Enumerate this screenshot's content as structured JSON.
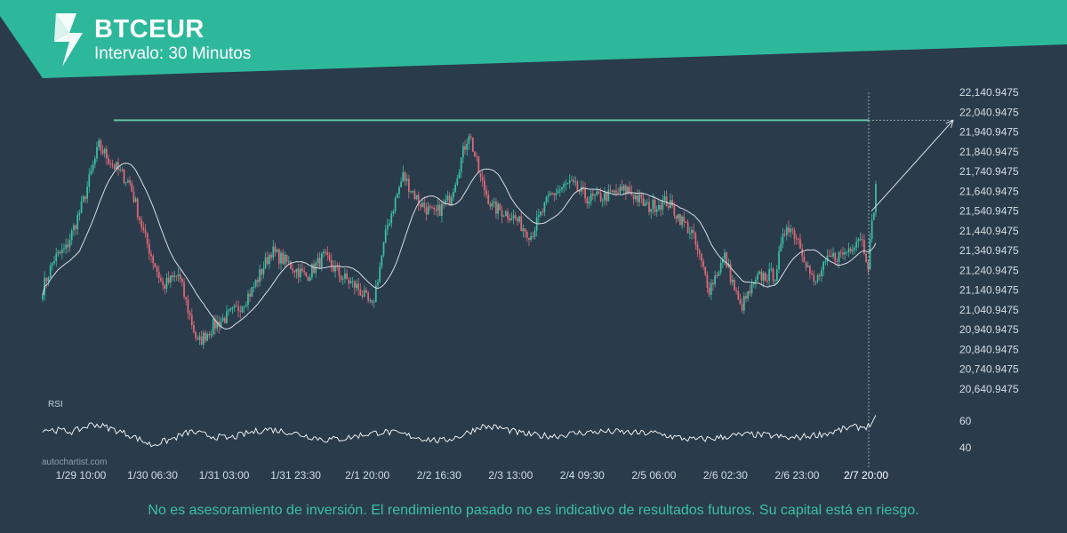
{
  "header": {
    "title": "BTCEUR",
    "subtitle": "Intervalo: 30 Minutos"
  },
  "watermark": "autochartist.com",
  "disclaimer": "No es asesoramiento de inversión. El rendimiento pasado no es indicativo de resultados futuros. Su capital está en riesgo.",
  "colors": {
    "background": "#2a3b4c",
    "banner": "#2db89c",
    "candle_up": "#3cc0a2",
    "candle_down": "#e06a74",
    "pattern_line": "#5fc3a4",
    "moving_average": "#d8dde2",
    "rsi": "#ffffff",
    "axis_text": "#d4dbe1"
  },
  "chart_data": {
    "type": "candlestick",
    "symbol": "BTCEUR",
    "price_axis": {
      "ticks": [
        "22,140.9475",
        "22,040.9475",
        "21,940.9475",
        "21,840.9475",
        "21,740.9475",
        "21,640.9475",
        "21,540.9475",
        "21,440.9475",
        "21,340.9475",
        "21,240.9475",
        "21,140.9475",
        "21,040.9475",
        "20,940.9475",
        "20,840.9475",
        "20,740.9475",
        "20,640.9475"
      ],
      "range": [
        20640.9475,
        22140.9475
      ]
    },
    "time_axis": {
      "labels": [
        "1/29 10:00",
        "1/30 06:30",
        "1/31 03:00",
        "1/31 23:30",
        "2/1 20:00",
        "2/2 16:30",
        "2/3 13:00",
        "2/4 09:30",
        "2/5 06:00",
        "2/6 02:30",
        "2/6 23:00",
        "2/7 20:00"
      ],
      "highlighted": "2/7 20:00"
    },
    "resistance_level": 22000,
    "forecast": {
      "from": 21540,
      "to": 22000
    },
    "price_anchors": [
      [
        0,
        21150
      ],
      [
        6,
        21300
      ],
      [
        12,
        21350
      ],
      [
        20,
        21560
      ],
      [
        29,
        21870
      ],
      [
        36,
        21780
      ],
      [
        45,
        21680
      ],
      [
        53,
        21400
      ],
      [
        62,
        21160
      ],
      [
        70,
        21220
      ],
      [
        80,
        20870
      ],
      [
        88,
        20960
      ],
      [
        100,
        21040
      ],
      [
        108,
        21140
      ],
      [
        118,
        21340
      ],
      [
        126,
        21280
      ],
      [
        136,
        21210
      ],
      [
        145,
        21310
      ],
      [
        153,
        21220
      ],
      [
        163,
        21150
      ],
      [
        170,
        21050
      ],
      [
        178,
        21470
      ],
      [
        186,
        21720
      ],
      [
        194,
        21590
      ],
      [
        202,
        21520
      ],
      [
        210,
        21600
      ],
      [
        220,
        21940
      ],
      [
        226,
        21700
      ],
      [
        232,
        21560
      ],
      [
        242,
        21520
      ],
      [
        252,
        21420
      ],
      [
        262,
        21620
      ],
      [
        272,
        21680
      ],
      [
        282,
        21600
      ],
      [
        292,
        21620
      ],
      [
        302,
        21650
      ],
      [
        312,
        21560
      ],
      [
        322,
        21590
      ],
      [
        335,
        21430
      ],
      [
        344,
        21150
      ],
      [
        352,
        21310
      ],
      [
        360,
        21050
      ],
      [
        370,
        21210
      ],
      [
        378,
        21220
      ],
      [
        384,
        21480
      ],
      [
        390,
        21400
      ],
      [
        398,
        21170
      ],
      [
        406,
        21300
      ],
      [
        414,
        21330
      ],
      [
        422,
        21420
      ],
      [
        426,
        21280
      ],
      [
        430,
        21660
      ]
    ],
    "candle_count": 431,
    "rsi": {
      "label": "RSI",
      "ticks": [
        60,
        40
      ],
      "anchors": [
        [
          0,
          54
        ],
        [
          8,
          53
        ],
        [
          16,
          52
        ],
        [
          26,
          58
        ],
        [
          36,
          54
        ],
        [
          46,
          49
        ],
        [
          56,
          42
        ],
        [
          66,
          46
        ],
        [
          76,
          52
        ],
        [
          86,
          49
        ],
        [
          96,
          47
        ],
        [
          106,
          51
        ],
        [
          116,
          54
        ],
        [
          126,
          52
        ],
        [
          136,
          49
        ],
        [
          146,
          46
        ],
        [
          156,
          47
        ],
        [
          166,
          50
        ],
        [
          176,
          52
        ],
        [
          186,
          50
        ],
        [
          196,
          47
        ],
        [
          206,
          45
        ],
        [
          216,
          49
        ],
        [
          226,
          56
        ],
        [
          236,
          55
        ],
        [
          246,
          51
        ],
        [
          256,
          49
        ],
        [
          266,
          49
        ],
        [
          276,
          51
        ],
        [
          286,
          52
        ],
        [
          296,
          52
        ],
        [
          306,
          51
        ],
        [
          316,
          51
        ],
        [
          326,
          48
        ],
        [
          336,
          46
        ],
        [
          346,
          47
        ],
        [
          356,
          49
        ],
        [
          366,
          50
        ],
        [
          376,
          49
        ],
        [
          386,
          47
        ],
        [
          396,
          49
        ],
        [
          406,
          51
        ],
        [
          416,
          55
        ],
        [
          426,
          56
        ],
        [
          430,
          62
        ]
      ]
    }
  }
}
